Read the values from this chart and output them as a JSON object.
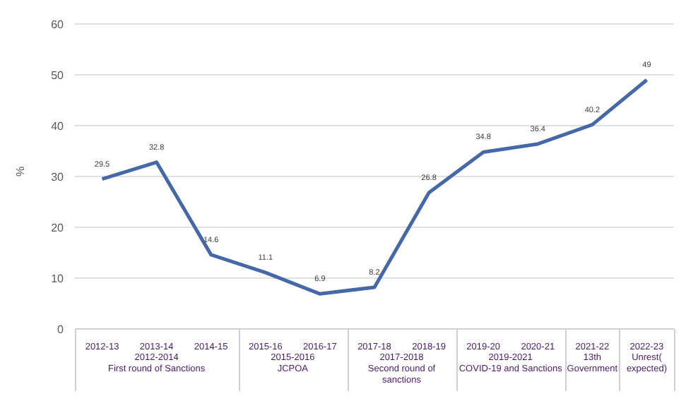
{
  "chart_data": {
    "type": "line",
    "ylabel": "%",
    "categories": [
      "2012-13",
      "2013-14",
      "2014-15",
      "2015-16",
      "2016-17",
      "2017-18",
      "2018-19",
      "2019-20",
      "2020-21",
      "2021-22",
      "2022-23"
    ],
    "series": [
      {
        "color": "#4468a8",
        "values": [
          29.5,
          32.8,
          14.6,
          11.1,
          6.9,
          8.2,
          26.8,
          34.8,
          36.4,
          40.2,
          49
        ]
      }
    ],
    "ylim": [
      0,
      60
    ],
    "yticks": [
      0,
      10,
      20,
      30,
      40,
      50,
      60
    ],
    "grid": "y",
    "data_labels": true,
    "marker": "none",
    "line_style": "solid",
    "annotations": [
      "2012-2014\nFirst round of Sanctions",
      "2015-2016\nJCPOA",
      "2017-2018\nSecond round of\nsanctions",
      "2019-2021\nCOVID-19 and Sanctions",
      "13th\nGovernment",
      "Unrest(\nexpected)"
    ]
  }
}
